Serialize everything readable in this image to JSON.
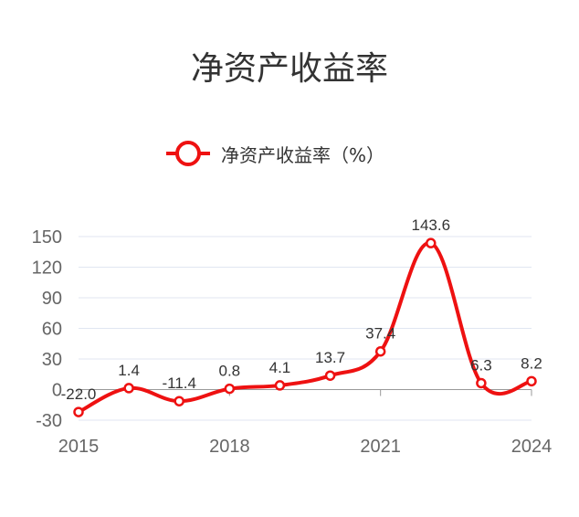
{
  "chart_data": {
    "type": "line",
    "title": "净资产收益率",
    "x": [
      "2015",
      "2016",
      "2017",
      "2018",
      "2019",
      "2020",
      "2021",
      "2022",
      "2023",
      "2024"
    ],
    "series": [
      {
        "name": "净资产收益率（%）",
        "values": [
          -22.0,
          1.4,
          -11.4,
          0.8,
          4.1,
          13.7,
          37.4,
          143.6,
          6.3,
          8.2
        ],
        "labels": [
          "-22.0",
          "1.4",
          "-11.4",
          "0.8",
          "4.1",
          "13.7",
          "37.4",
          "143.6",
          "6.3",
          "8.2"
        ],
        "color": "#ee1111"
      }
    ],
    "x_tick_labels": [
      "2015",
      "2018",
      "2021",
      "2024"
    ],
    "y_ticks": [
      -30,
      0,
      30,
      60,
      90,
      120,
      150
    ],
    "y_tick_labels": [
      "-30",
      "0",
      "30",
      "60",
      "90",
      "120",
      "150"
    ],
    "ylim": [
      -30,
      150
    ],
    "grid": true,
    "legend_position": "top"
  }
}
